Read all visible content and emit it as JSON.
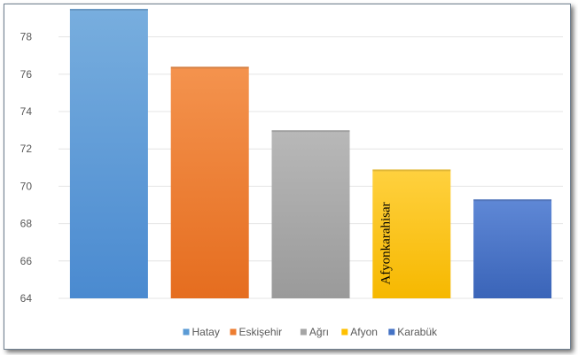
{
  "chart_data": {
    "type": "bar",
    "categories": [
      "Hatay",
      "Eskişehir",
      "Ağrı",
      "Afyon",
      "Karabük"
    ],
    "values": [
      79.5,
      76.4,
      73.0,
      70.9,
      69.3
    ],
    "colors": [
      "#5b9bd5",
      "#ed7d31",
      "#a5a5a5",
      "#ffc000",
      "#4472c4"
    ],
    "title": "",
    "xlabel": "",
    "ylabel": "",
    "ylim": [
      64,
      79.5
    ],
    "yticks": [
      64,
      66,
      68,
      70,
      72,
      74,
      76,
      78
    ],
    "grid": true,
    "legend": {
      "position": "bottom",
      "entries": [
        "Hatay",
        "Eskişehir",
        "Ağrı",
        "Afyon",
        "Karabük"
      ]
    },
    "annotations": [
      {
        "category": "Afyon",
        "text": "Afyonkarahisar"
      }
    ]
  }
}
